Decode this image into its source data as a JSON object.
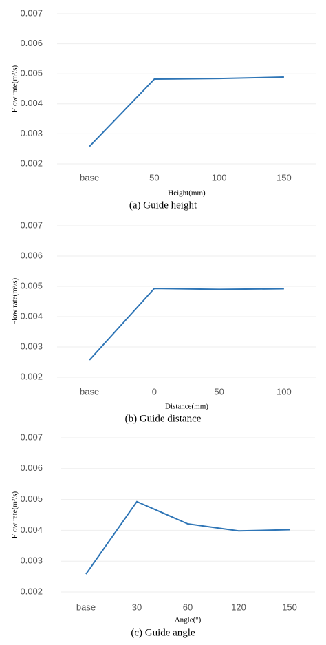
{
  "chart_data": [
    {
      "type": "line",
      "caption": "(a)  Guide height",
      "x_label": "Height(mm)",
      "y_label": "Flow rate(m³/s)",
      "categories": [
        "base",
        "50",
        "100",
        "150"
      ],
      "values": [
        0.00258,
        0.00482,
        0.00484,
        0.00489
      ],
      "color": "#2e75b6",
      "ylim": [
        0.002,
        0.007
      ],
      "yticks": [
        0.002,
        0.003,
        0.004,
        0.005,
        0.006,
        0.007
      ],
      "grid": true
    },
    {
      "type": "line",
      "caption": "(b)  Guide distance",
      "x_label": "Distance(mm)",
      "y_label": "Flow rate(m³/s)",
      "categories": [
        "base",
        "0",
        "50",
        "100"
      ],
      "values": [
        0.00257,
        0.00493,
        0.0049,
        0.00492
      ],
      "color": "#2e75b6",
      "ylim": [
        0.002,
        0.007
      ],
      "yticks": [
        0.002,
        0.003,
        0.004,
        0.005,
        0.006,
        0.007
      ],
      "grid": true
    },
    {
      "type": "line",
      "caption": "(c)  Guide angle",
      "x_label": "Angle(°)",
      "y_label": "Flow rate(m³/s)",
      "categories": [
        "base",
        "30",
        "60",
        "120",
        "150"
      ],
      "values": [
        0.00258,
        0.00493,
        0.00421,
        0.00398,
        0.00402
      ],
      "color": "#2e75b6",
      "ylim": [
        0.002,
        0.007
      ],
      "yticks": [
        0.002,
        0.003,
        0.004,
        0.005,
        0.006,
        0.007
      ],
      "grid": true
    }
  ]
}
